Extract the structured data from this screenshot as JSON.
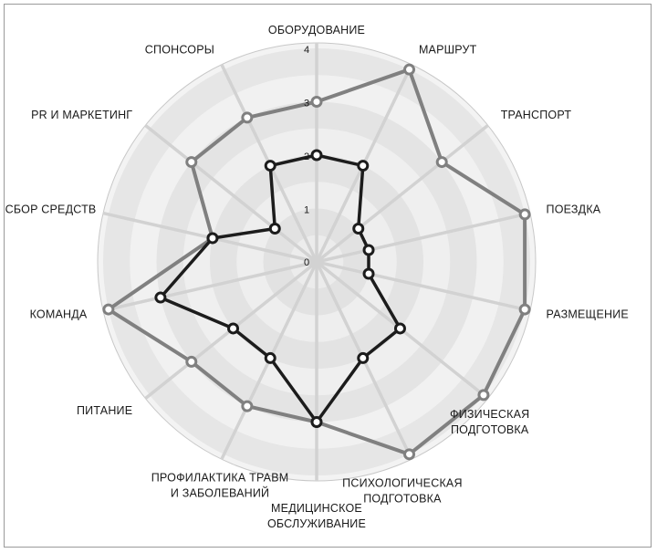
{
  "chart_data": {
    "type": "radar",
    "axes": [
      "ОБОРУДОВАНИЕ",
      "МАРШРУТ",
      "ТРАНСПОРТ",
      "ПОЕЗДКА",
      "РАЗМЕЩЕНИЕ",
      "ФИЗИЧЕСКАЯ ПОДГОТОВКА",
      "ПСИХОЛОГИЧЕСКАЯ ПОДГОТОВКА",
      "МЕДИЦИНСКОЕ ОБСЛУЖИВАНИЕ",
      "ПРОФИЛАКТИКА ТРАВМ И ЗАБОЛЕВАНИЙ",
      "ПИТАНИЕ",
      "КОМАНДА",
      "СБОР СРЕДСТВ",
      "PR И МАРКЕТИНГ",
      "СПОНСОРЫ"
    ],
    "ticks": [
      "0",
      "1",
      "2",
      "3",
      "4"
    ],
    "rlim": [
      0,
      4
    ],
    "grid": true,
    "series": [
      {
        "values": [
          3,
          4,
          3,
          4,
          4,
          4,
          4,
          3,
          3,
          3,
          4,
          2,
          3,
          3
        ],
        "color": "#808080"
      },
      {
        "values": [
          2,
          2,
          1,
          1,
          1,
          2,
          2,
          3,
          2,
          2,
          3,
          2,
          1,
          2
        ],
        "color": "#1c1c1c"
      }
    ]
  }
}
